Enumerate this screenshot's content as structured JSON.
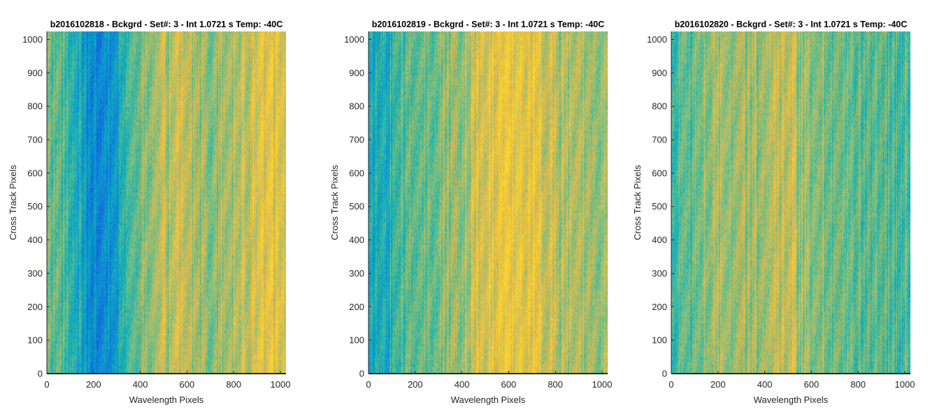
{
  "figure": {
    "background": "#ffffff",
    "colormap": "parula"
  },
  "chart_data": [
    {
      "type": "heatmap",
      "title": "b2016102818 - Bckgrd - Set#: 3 - Int 1.0721 s Temp: -40C",
      "xlabel": "Wavelength Pixels",
      "ylabel": "Cross Track Pixels",
      "xlim": [
        0,
        1024
      ],
      "ylim": [
        0,
        1024
      ],
      "xticks": [
        0,
        200,
        400,
        600,
        800,
        1000
      ],
      "yticks": [
        0,
        100,
        200,
        300,
        400,
        500,
        600,
        700,
        800,
        900,
        1000
      ],
      "column_profile": {
        "x": [
          0,
          60,
          120,
          180,
          240,
          300,
          360,
          420,
          480,
          540,
          600,
          660,
          720,
          780,
          840,
          900,
          960,
          1024
        ],
        "level": [
          0.55,
          0.48,
          0.4,
          0.28,
          0.22,
          0.35,
          0.48,
          0.55,
          0.6,
          0.66,
          0.63,
          0.6,
          0.58,
          0.6,
          0.66,
          0.7,
          0.76,
          0.72
        ]
      }
    },
    {
      "type": "heatmap",
      "title": "b2016102819 - Bckgrd - Set#: 3 - Int 1.0721 s Temp: -40C",
      "xlabel": "Wavelength Pixels",
      "ylabel": "Cross Track Pixels",
      "xlim": [
        0,
        1024
      ],
      "ylim": [
        0,
        1024
      ],
      "xticks": [
        0,
        200,
        400,
        600,
        800,
        1000
      ],
      "yticks": [
        0,
        100,
        200,
        300,
        400,
        500,
        600,
        700,
        800,
        900,
        1000
      ],
      "column_profile": {
        "x": [
          0,
          60,
          120,
          180,
          240,
          300,
          360,
          420,
          480,
          540,
          600,
          660,
          720,
          780,
          840,
          900,
          960,
          1024
        ],
        "level": [
          0.35,
          0.38,
          0.45,
          0.5,
          0.52,
          0.55,
          0.58,
          0.62,
          0.68,
          0.72,
          0.76,
          0.74,
          0.7,
          0.65,
          0.62,
          0.6,
          0.6,
          0.62
        ]
      }
    },
    {
      "type": "heatmap",
      "title": "b2016102820 - Bckgrd - Set#: 3 - Int 1.0721 s Temp: -40C",
      "xlabel": "Wavelength Pixels",
      "ylabel": "Cross Track Pixels",
      "xlim": [
        0,
        1024
      ],
      "ylim": [
        0,
        1024
      ],
      "xticks": [
        0,
        200,
        400,
        600,
        800,
        1000
      ],
      "yticks": [
        0,
        100,
        200,
        300,
        400,
        500,
        600,
        700,
        800,
        900,
        1000
      ],
      "column_profile": {
        "x": [
          0,
          60,
          120,
          180,
          240,
          300,
          360,
          420,
          480,
          540,
          600,
          660,
          720,
          780,
          840,
          900,
          960,
          1024
        ],
        "level": [
          0.45,
          0.5,
          0.55,
          0.58,
          0.6,
          0.57,
          0.6,
          0.64,
          0.66,
          0.63,
          0.58,
          0.55,
          0.52,
          0.5,
          0.48,
          0.47,
          0.46,
          0.44
        ]
      }
    }
  ]
}
